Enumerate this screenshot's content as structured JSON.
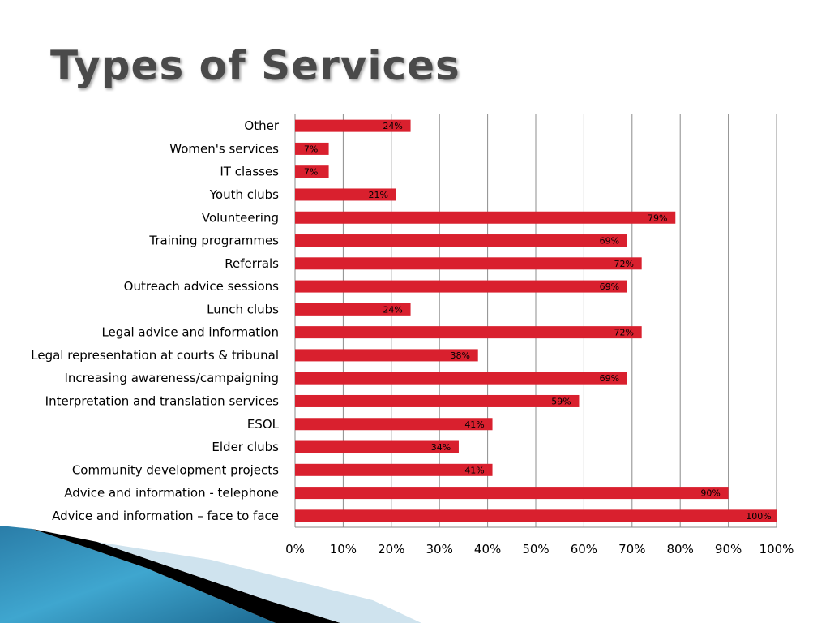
{
  "slide": {
    "title": "Types of Services"
  },
  "chart_data": {
    "type": "bar",
    "orientation": "horizontal",
    "title": "",
    "xlabel": "",
    "ylabel": "",
    "xlim": [
      0,
      100
    ],
    "grid": true,
    "bar_color": "#d9202e",
    "categories": [
      "Other",
      "Women's services",
      "IT classes",
      "Youth clubs",
      "Volunteering",
      "Training programmes",
      "Referrals",
      "Outreach advice sessions",
      "Lunch clubs",
      "Legal advice and information",
      "Legal representation at courts & tribunal",
      "Increasing awareness/campaigning",
      "Interpretation and translation services",
      "ESOL",
      "Elder clubs",
      "Community development projects",
      "Advice and information - telephone",
      "Advice and information – face to face"
    ],
    "values": [
      24,
      7,
      7,
      21,
      79,
      69,
      72,
      69,
      24,
      72,
      38,
      69,
      59,
      41,
      34,
      41,
      90,
      100
    ],
    "data_labels": [
      "24%",
      "7%",
      "7%",
      "21%",
      "79%",
      "69%",
      "72%",
      "69%",
      "24%",
      "72%",
      "38%",
      "69%",
      "59%",
      "41%",
      "34%",
      "41%",
      "90%",
      "100%"
    ],
    "x_ticks": [
      "0%",
      "10%",
      "20%",
      "30%",
      "40%",
      "50%",
      "60%",
      "70%",
      "80%",
      "90%",
      "100%"
    ]
  }
}
